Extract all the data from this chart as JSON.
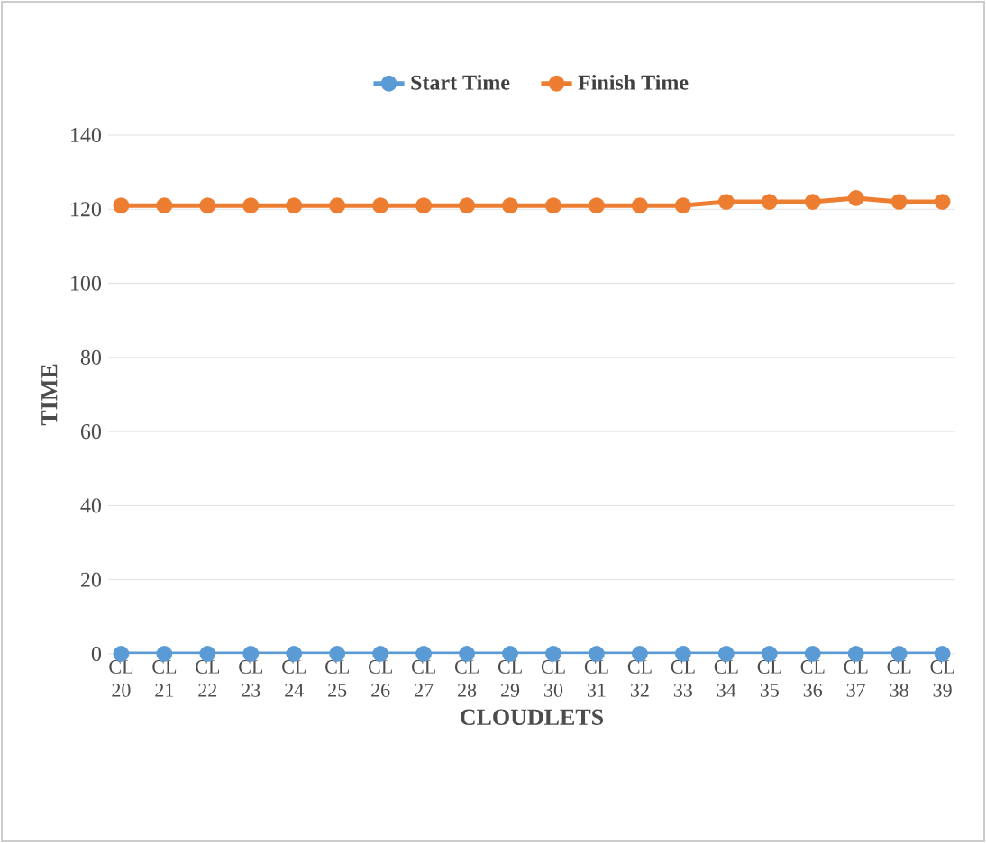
{
  "chart_data": {
    "type": "line",
    "xlabel": "CLOUDLETS",
    "ylabel": "TIME",
    "categories": [
      "CL 20",
      "CL 21",
      "CL 22",
      "CL 23",
      "CL 24",
      "CL 25",
      "CL 26",
      "CL 27",
      "CL 28",
      "CL 29",
      "CL 30",
      "CL 31",
      "CL 32",
      "CL 33",
      "CL 34",
      "CL 35",
      "CL 36",
      "CL 37",
      "CL 38",
      "CL 39"
    ],
    "series": [
      {
        "name": "Start Time",
        "color": "#5b9bd5",
        "values": [
          0,
          0,
          0,
          0,
          0,
          0,
          0,
          0,
          0,
          0,
          0,
          0,
          0,
          0,
          0,
          0,
          0,
          0,
          0,
          0
        ]
      },
      {
        "name": "Finish Time",
        "color": "#ed7d31",
        "values": [
          121,
          121,
          121,
          121,
          121,
          121,
          121,
          121,
          121,
          121,
          121,
          121,
          121,
          121,
          122,
          122,
          122,
          123,
          122,
          122
        ]
      }
    ],
    "ylim": [
      0,
      140
    ],
    "yticks": [
      0,
      20,
      40,
      60,
      80,
      100,
      120,
      140
    ],
    "grid": "y",
    "legend": "top",
    "marker": "circle",
    "line_style": "solid"
  }
}
